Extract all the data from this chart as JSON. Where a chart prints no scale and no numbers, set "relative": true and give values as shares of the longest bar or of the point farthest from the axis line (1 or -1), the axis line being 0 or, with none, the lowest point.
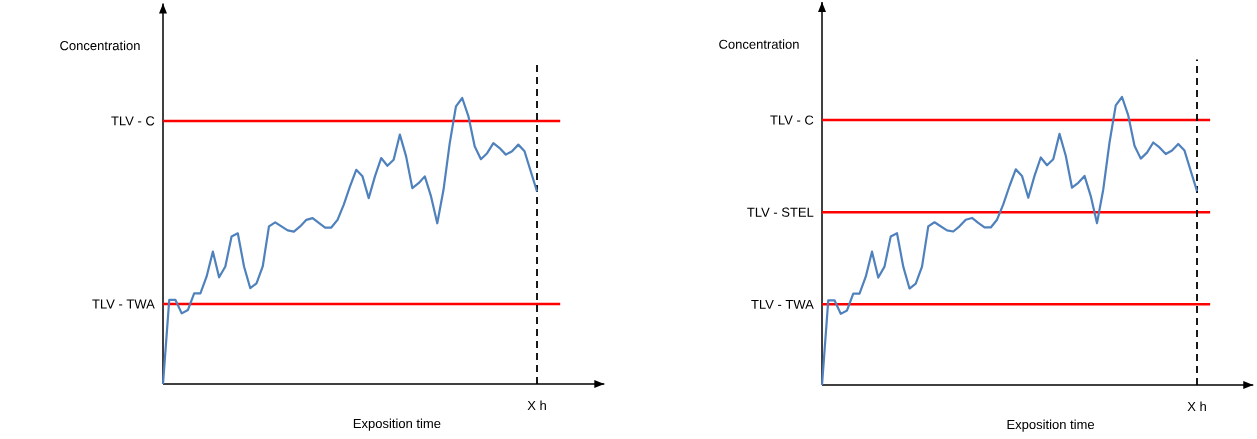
{
  "chart_data": [
    {
      "type": "line",
      "relative": true,
      "xlabel": "Exposition time",
      "ylabel": "Concentration",
      "marker": "none",
      "line_style": "solid",
      "categories": [
        null,
        null,
        null,
        null,
        null,
        null,
        null,
        null,
        null,
        null,
        null,
        null,
        null,
        null,
        null,
        null,
        null,
        null,
        null,
        null,
        null,
        null,
        null,
        null,
        null,
        null,
        null,
        null,
        null,
        null,
        null,
        null,
        null,
        null,
        null,
        null,
        null,
        null,
        null,
        null,
        null,
        null,
        null,
        null,
        null,
        null,
        null,
        null,
        null,
        null,
        null,
        null,
        null,
        null,
        null,
        null,
        null,
        null,
        null,
        null,
        null
      ],
      "series": [
        {
          "color": "#4f81bd",
          "values": [
            0,
            0.294,
            0.294,
            0.247,
            0.259,
            0.317,
            0.317,
            0.376,
            0.463,
            0.373,
            0.411,
            0.516,
            0.527,
            0.411,
            0.335,
            0.352,
            0.411,
            0.551,
            0.565,
            0.551,
            0.537,
            0.533,
            0.551,
            0.574,
            0.58,
            0.563,
            0.547,
            0.547,
            0.574,
            0.627,
            0.691,
            0.749,
            0.726,
            0.65,
            0.726,
            0.79,
            0.763,
            0.784,
            0.872,
            0.796,
            0.685,
            0.702,
            0.726,
            0.656,
            0.562,
            0.679,
            0.842,
            0.971,
            1.0,
            0.936,
            0.831,
            0.786,
            0.807,
            0.842,
            0.825,
            0.802,
            0.814,
            0.837,
            0.814,
            0.743,
            0.673
          ]
        }
      ],
      "ref_lines": [
        {
          "axis": "y",
          "value": 0.92,
          "label": "TLV - C",
          "color": "#ff0000"
        },
        {
          "axis": "y",
          "value": 0.28,
          "label": "TLV - TWA",
          "color": "#ff0000"
        },
        {
          "axis": "x",
          "label": "X h",
          "color": "#000000",
          "line_style": "dashed"
        }
      ]
    },
    {
      "type": "line",
      "relative": true,
      "xlabel": "Exposition time",
      "ylabel": "Concentration",
      "marker": "none",
      "line_style": "solid",
      "categories": [
        null,
        null,
        null,
        null,
        null,
        null,
        null,
        null,
        null,
        null,
        null,
        null,
        null,
        null,
        null,
        null,
        null,
        null,
        null,
        null,
        null,
        null,
        null,
        null,
        null,
        null,
        null,
        null,
        null,
        null,
        null,
        null,
        null,
        null,
        null,
        null,
        null,
        null,
        null,
        null,
        null,
        null,
        null,
        null,
        null,
        null,
        null,
        null,
        null,
        null,
        null,
        null,
        null,
        null,
        null,
        null,
        null,
        null,
        null,
        null,
        null
      ],
      "series": [
        {
          "color": "#4f81bd",
          "values": [
            0,
            0.294,
            0.294,
            0.247,
            0.259,
            0.317,
            0.317,
            0.376,
            0.463,
            0.373,
            0.411,
            0.516,
            0.527,
            0.411,
            0.335,
            0.352,
            0.411,
            0.551,
            0.565,
            0.551,
            0.537,
            0.533,
            0.551,
            0.574,
            0.58,
            0.563,
            0.547,
            0.547,
            0.574,
            0.627,
            0.691,
            0.749,
            0.726,
            0.65,
            0.726,
            0.79,
            0.763,
            0.784,
            0.872,
            0.796,
            0.685,
            0.702,
            0.726,
            0.656,
            0.562,
            0.679,
            0.842,
            0.971,
            1.0,
            0.936,
            0.831,
            0.786,
            0.807,
            0.842,
            0.825,
            0.802,
            0.814,
            0.837,
            0.814,
            0.743,
            0.673
          ]
        }
      ],
      "ref_lines": [
        {
          "axis": "y",
          "value": 0.92,
          "label": "TLV - C",
          "color": "#ff0000"
        },
        {
          "axis": "y",
          "value": 0.6,
          "label": "TLV - STEL",
          "color": "#ff0000"
        },
        {
          "axis": "y",
          "value": 0.28,
          "label": "TLV - TWA",
          "color": "#ff0000"
        },
        {
          "axis": "x",
          "label": "X h",
          "color": "#000000",
          "line_style": "dashed"
        }
      ]
    }
  ]
}
